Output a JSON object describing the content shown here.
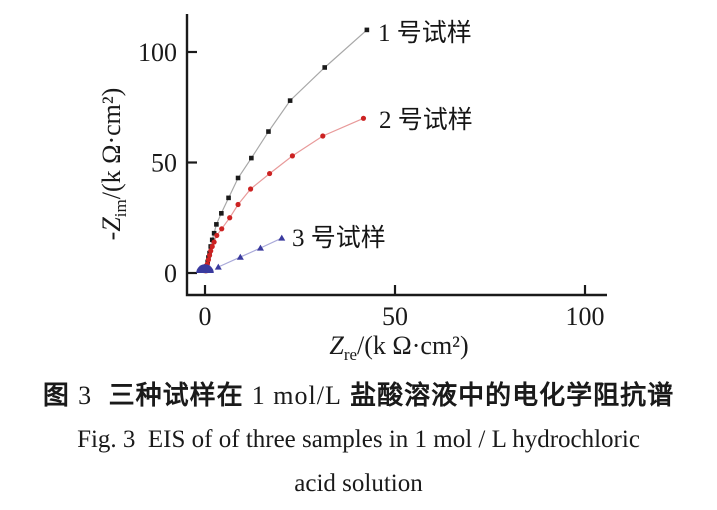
{
  "chart": {
    "y_axis": {
      "prefix": "-",
      "symbol": "Z",
      "sub": "im",
      "unit": "/(k Ω·cm²)"
    },
    "x_axis": {
      "symbol": "Z",
      "sub": "re",
      "unit": "/(k Ω·cm²)"
    }
  },
  "chart_data": {
    "type": "scatter",
    "title": "",
    "xlabel": "Z_re/(k Ω·cm²)",
    "ylabel": "-Z_im/(k Ω·cm²)",
    "xlim": [
      0,
      107
    ],
    "ylim": [
      0,
      118
    ],
    "x_ticks": [
      0,
      50,
      100
    ],
    "y_ticks": [
      0,
      50,
      100
    ],
    "grid": false,
    "legend_position": "next-to-last-point",
    "series": [
      {
        "name": "sample-1",
        "label": "1 号试样",
        "marker": "square",
        "color": "#1a1a1a",
        "line_color": "#a8a8a8",
        "points": [
          [
            0.2,
            1
          ],
          [
            0.4,
            3
          ],
          [
            0.7,
            5
          ],
          [
            0.9,
            7
          ],
          [
            1.2,
            9
          ],
          [
            1.5,
            12
          ],
          [
            1.9,
            15
          ],
          [
            2.4,
            18
          ],
          [
            3.0,
            22
          ],
          [
            4.3,
            27
          ],
          [
            6.2,
            34
          ],
          [
            8.7,
            43
          ],
          [
            12.2,
            52
          ],
          [
            16.7,
            64
          ],
          [
            22.4,
            78
          ],
          [
            31.5,
            93
          ],
          [
            42.6,
            110
          ]
        ]
      },
      {
        "name": "sample-2",
        "label": "2 号试样",
        "marker": "circle",
        "color": "#cc2222",
        "line_color": "#e89a9a",
        "points": [
          [
            0.2,
            1
          ],
          [
            0.4,
            2
          ],
          [
            0.6,
            4
          ],
          [
            0.9,
            6
          ],
          [
            1.2,
            8
          ],
          [
            1.5,
            10
          ],
          [
            1.9,
            12
          ],
          [
            2.4,
            14
          ],
          [
            3.1,
            17
          ],
          [
            4.4,
            20
          ],
          [
            6.5,
            25
          ],
          [
            8.7,
            31
          ],
          [
            12.0,
            38
          ],
          [
            17.0,
            45
          ],
          [
            23.0,
            53
          ],
          [
            31.0,
            62
          ],
          [
            41.7,
            70
          ]
        ]
      },
      {
        "name": "sample-3",
        "label": "3 号试样",
        "marker": "triangle",
        "color": "#3a3a9e",
        "line_color": "#a9a9d9",
        "origin_arc_radius": 2.3,
        "points": [
          [
            3.5,
            2.7
          ],
          [
            9.3,
            7.2
          ],
          [
            14.6,
            11.3
          ],
          [
            20.2,
            15.8
          ]
        ]
      }
    ]
  },
  "caption": {
    "zh_p1": "图 ",
    "zh_p2": "3",
    "zh_p3": "  三种试样在 ",
    "zh_p4": "1 mol/L",
    "zh_p5": " 盐酸溶液中的电化学阻抗谱",
    "en_line1": "Fig. 3  EIS of of three samples in 1 mol / L hydrochloric",
    "en_line2": "acid solution"
  }
}
